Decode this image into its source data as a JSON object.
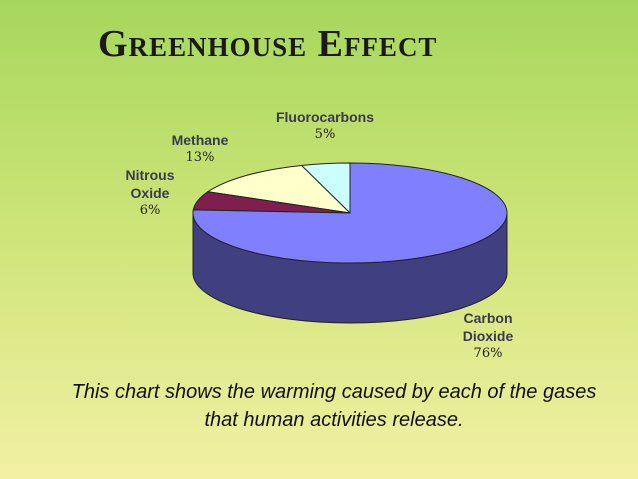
{
  "chart_data": {
    "type": "pie",
    "title": "Greenhouse Effect",
    "categories": [
      "Fluorocarbons",
      "Methane",
      "Nitrous Oxide",
      "Carbon Dioxide"
    ],
    "values": [
      5,
      13,
      6,
      76
    ],
    "value_labels": [
      "5%",
      "13%",
      "6%",
      "76%"
    ],
    "colors": [
      "#ccffff",
      "#ffffcc",
      "#7f1f4f",
      "#8080ff"
    ],
    "caption": "This chart shows the warming caused by each of the gases that human activities release."
  }
}
